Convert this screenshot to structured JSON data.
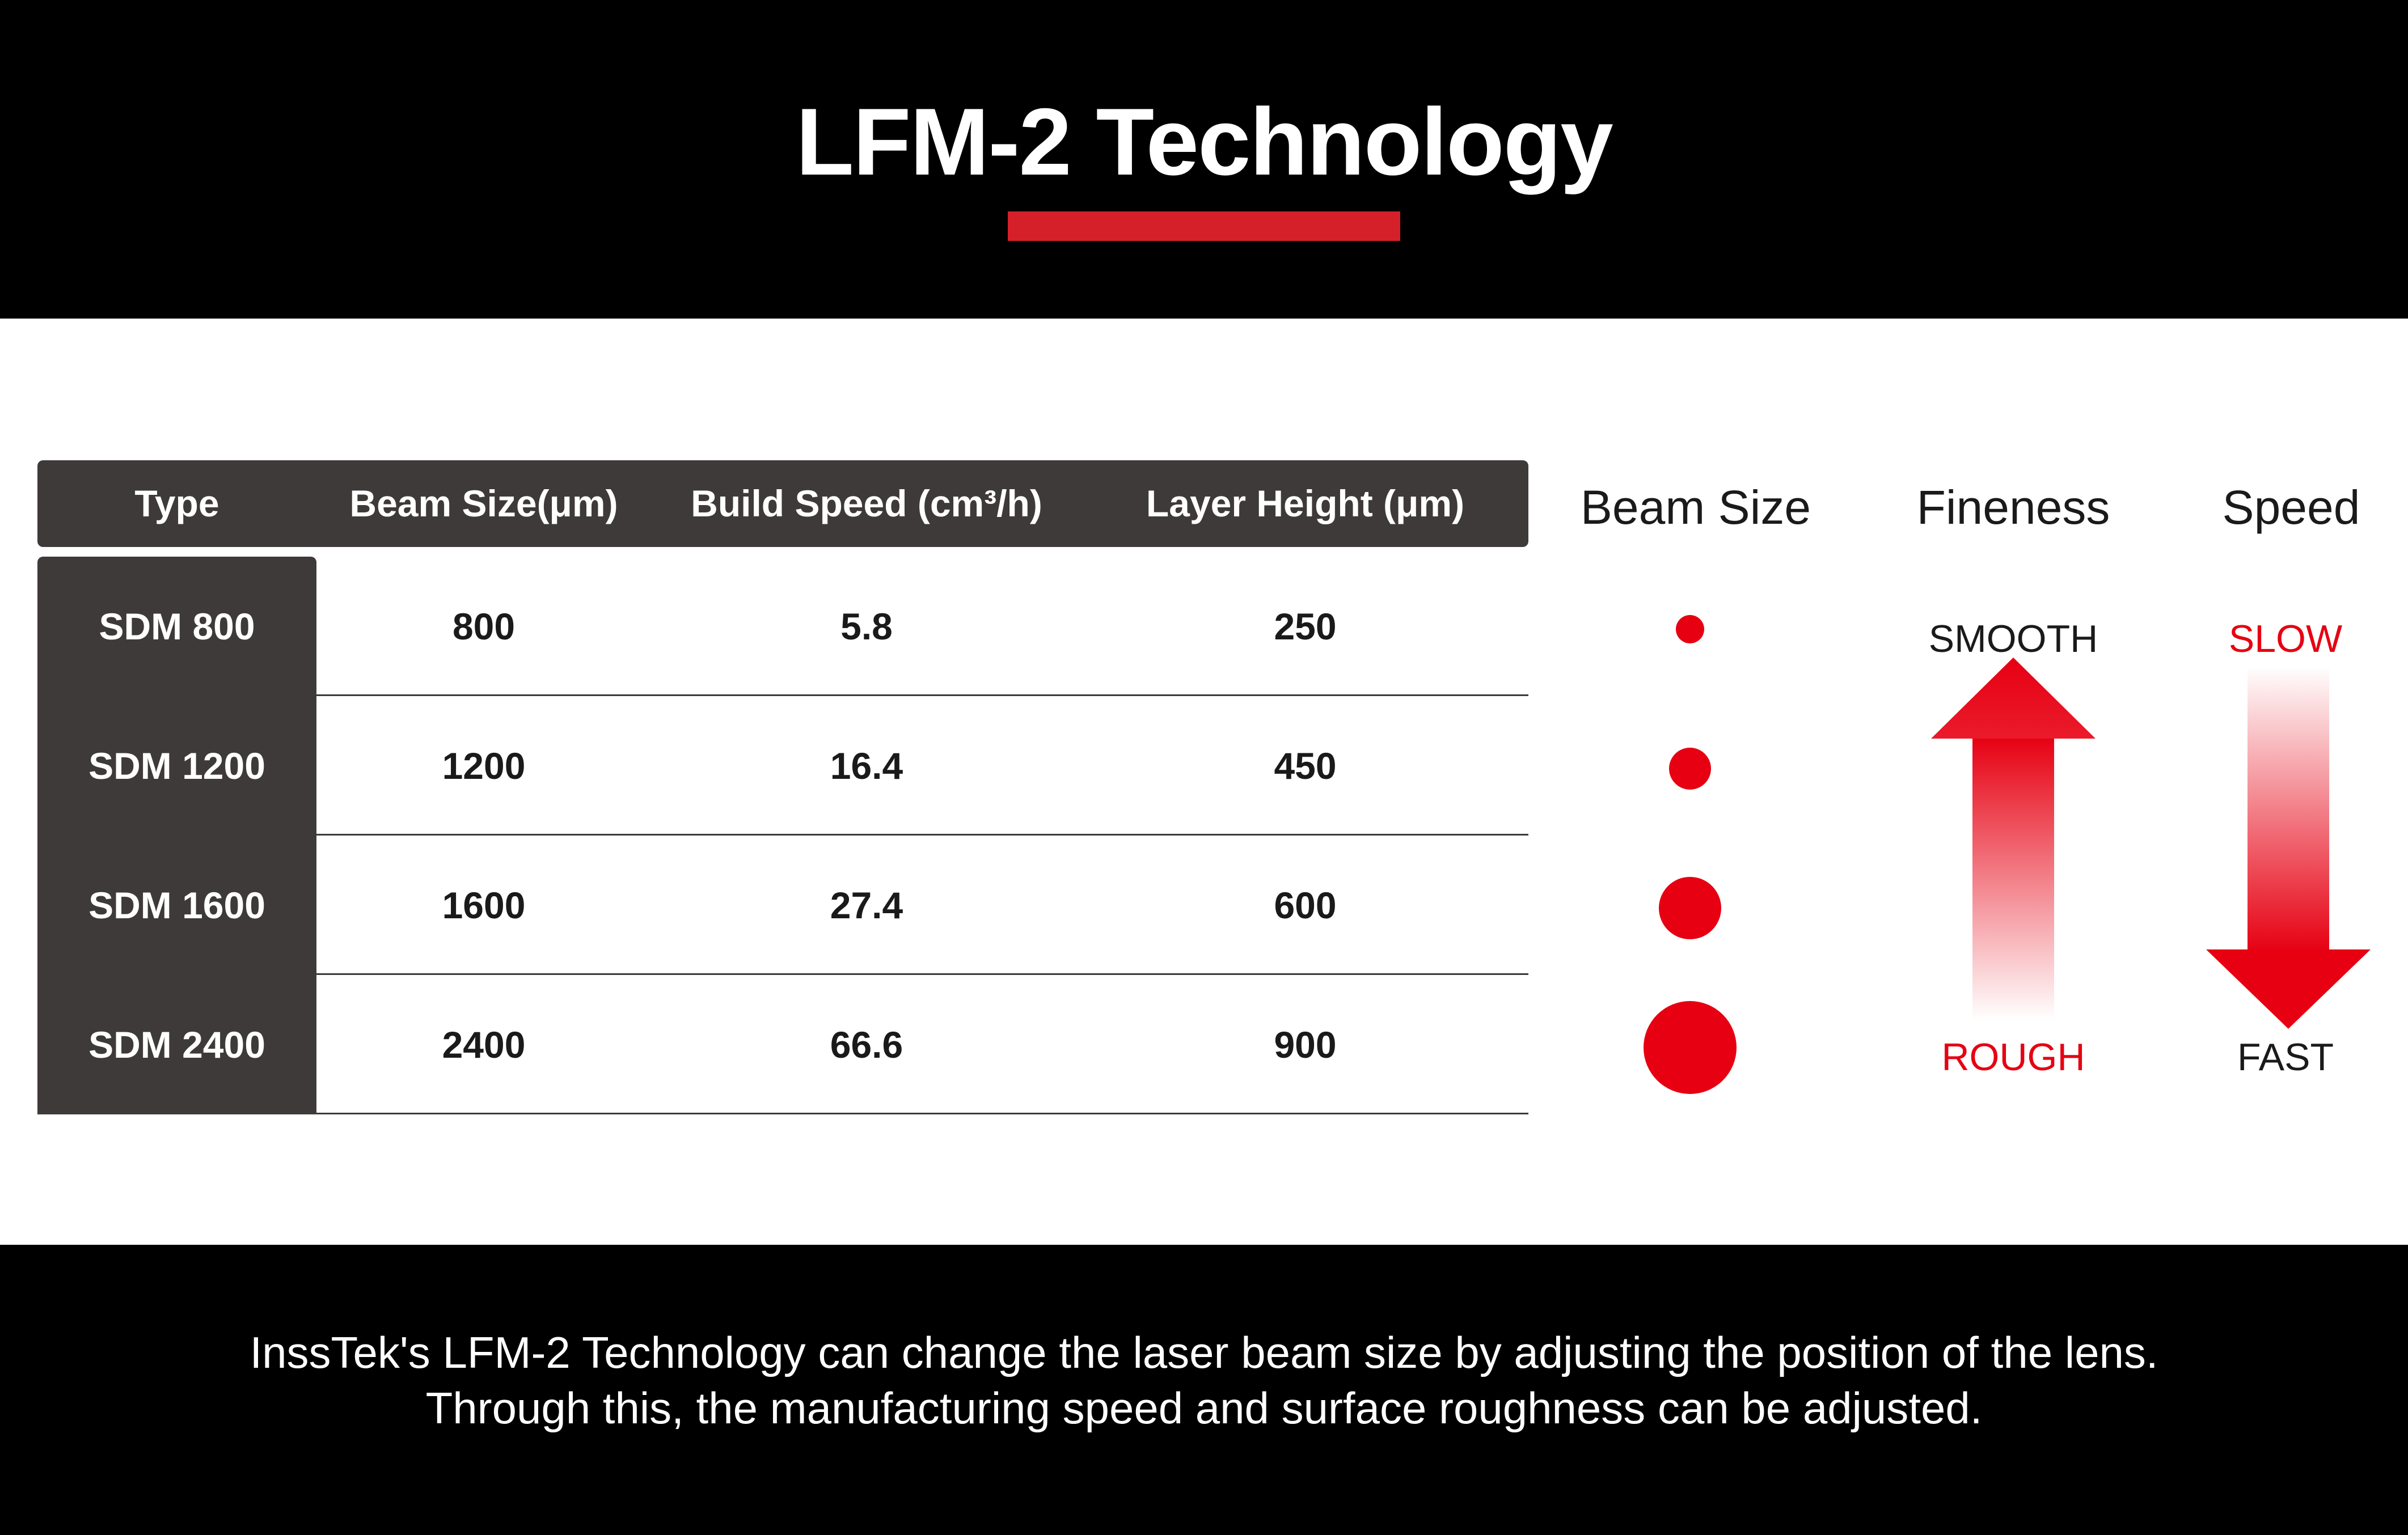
{
  "header": {
    "title": "LFM-2 Technology"
  },
  "table": {
    "columns": [
      "Type",
      "Beam Size(μm)",
      "Build Speed (cm³/h)",
      "Layer Height (μm)"
    ],
    "rows": [
      {
        "type": "SDM 800",
        "beam_size": "800",
        "build_speed": "5.8",
        "layer_height": "250"
      },
      {
        "type": "SDM 1200",
        "beam_size": "1200",
        "build_speed": "16.4",
        "layer_height": "450"
      },
      {
        "type": "SDM 1600",
        "beam_size": "1600",
        "build_speed": "27.4",
        "layer_height": "600"
      },
      {
        "type": "SDM 2400",
        "beam_size": "2400",
        "build_speed": "66.6",
        "layer_height": "900"
      }
    ]
  },
  "indicators": {
    "beam_size_label": "Beam Size",
    "fineness": {
      "label": "Fineness",
      "top": "SMOOTH",
      "bottom": "ROUGH"
    },
    "speed": {
      "label": "Speed",
      "top": "SLOW",
      "bottom": "FAST"
    }
  },
  "colors": {
    "accent": "#e60012",
    "title_bar": "#d5202a",
    "dark_cell": "#3e3a39"
  },
  "footer": {
    "line1": "InssTek's LFM-2 Technology can change the laser beam size by adjusting the position of the lens.",
    "line2": "Through this, the manufacturing speed and surface roughness can be adjusted."
  }
}
